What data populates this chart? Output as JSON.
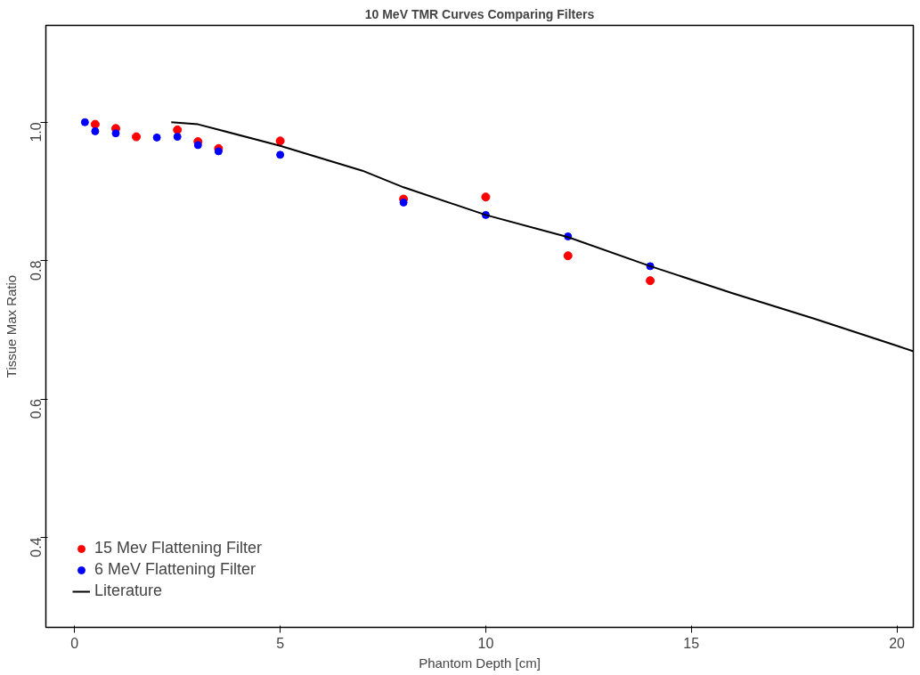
{
  "chart_data": {
    "type": "scatter",
    "title": "10 MeV TMR Curves Comparing Filters",
    "xlabel": "Phantom Depth [cm]",
    "ylabel": "Tissue Max Ratio",
    "xlim": [
      -0.7,
      20.4
    ],
    "ylim": [
      0.27,
      1.14
    ],
    "xticks": [
      0,
      5,
      10,
      15,
      20
    ],
    "yticks": [
      0.4,
      0.6,
      0.8,
      {
        "value": 1.0,
        "label": "1.0"
      }
    ],
    "grid": false,
    "legend": "bottom left",
    "marker": "circle",
    "series": [
      {
        "name": "15 Mev Flattening Filter",
        "color": "#ff0000",
        "x": [
          0.5,
          1,
          1.5,
          2.5,
          3,
          3.5,
          5,
          8,
          10,
          12,
          14
        ],
        "values": [
          0.997,
          0.991,
          0.979,
          0.989,
          0.972,
          0.962,
          0.973,
          0.889,
          0.892,
          0.807,
          0.771
        ]
      },
      {
        "name": "6 MeV Flattening Filter",
        "color": "#0000ff",
        "x": [
          0.25,
          0.5,
          1,
          2,
          2.5,
          3,
          3.5,
          5,
          8,
          10,
          12,
          14
        ],
        "values": [
          1.0,
          0.987,
          0.984,
          0.978,
          0.979,
          0.967,
          0.958,
          0.953,
          0.884,
          0.866,
          0.835,
          0.792
        ]
      },
      {
        "name": "Literature",
        "color": "#000000",
        "type": "line",
        "marker": "none",
        "x": [
          2.35,
          3,
          5,
          7,
          8,
          10,
          12,
          14,
          16,
          18,
          20,
          20.4
        ],
        "values": [
          1.0,
          0.997,
          0.966,
          0.93,
          0.906,
          0.866,
          0.834,
          0.792,
          0.753,
          0.716,
          0.677,
          0.669
        ]
      }
    ]
  }
}
